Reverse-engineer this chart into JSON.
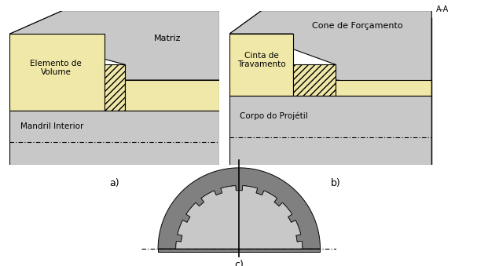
{
  "bg_color": "#ffffff",
  "gray_light": "#c8c8c8",
  "dark_gray": "#808080",
  "yellow_light": "#f0e8a8",
  "label_a": "a)",
  "label_b": "b)",
  "label_c": "c)",
  "text_matriz": "Matriz",
  "text_mandril": "Mandril Interior",
  "text_elemento": "Elemento de\nVolume",
  "text_cone": "Cone de Forçamento",
  "text_corpo": "Corpo do Projétil",
  "text_cinta": "Cinta de\nTravamento",
  "text_aa": "A-A"
}
